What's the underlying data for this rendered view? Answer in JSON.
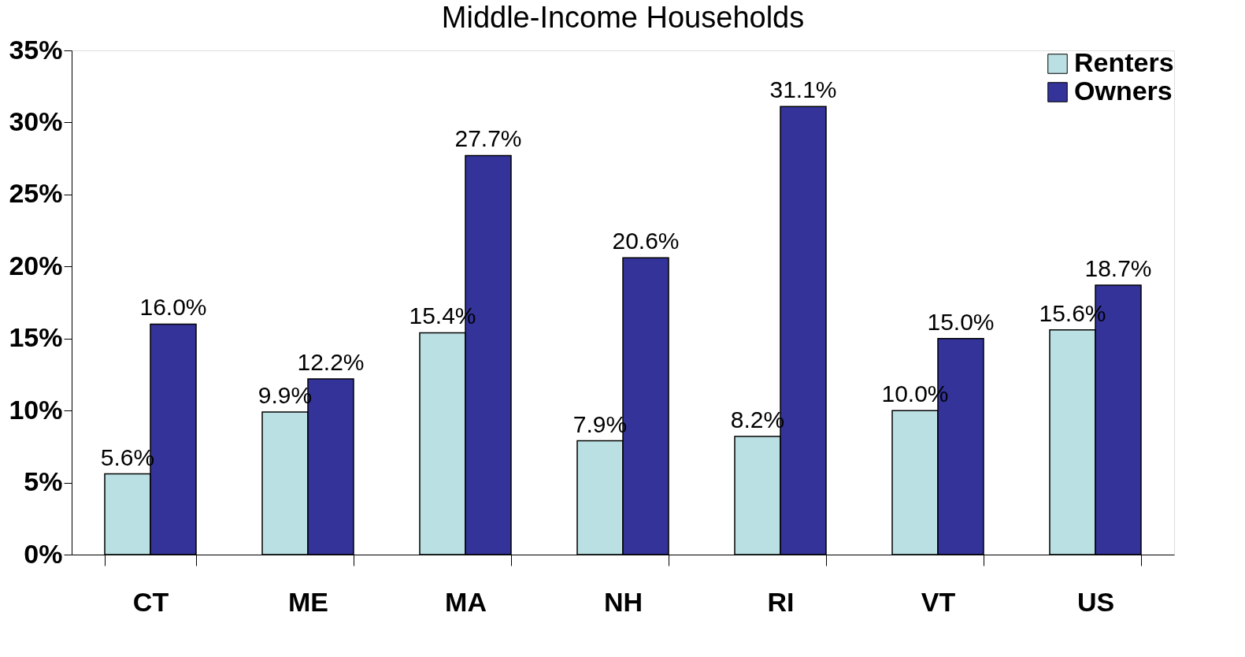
{
  "chart_data": {
    "type": "bar",
    "title": "Middle-Income Households",
    "categories": [
      "CT",
      "ME",
      "MA",
      "NH",
      "RI",
      "VT",
      "US"
    ],
    "series": [
      {
        "name": "Renters",
        "color": "#bbe0e3",
        "values": [
          5.6,
          9.9,
          15.4,
          7.9,
          8.2,
          10.0,
          15.6
        ],
        "value_labels": [
          "5.6%",
          "9.9%",
          "15.4%",
          "7.9%",
          "8.2%",
          "10.0%",
          "15.6%"
        ]
      },
      {
        "name": "Owners",
        "color": "#333399",
        "values": [
          16.0,
          12.2,
          27.7,
          20.6,
          31.1,
          15.0,
          18.7
        ],
        "value_labels": [
          "16.0%",
          "12.2%",
          "27.7%",
          "20.6%",
          "31.1%",
          "15.0%",
          "18.7%"
        ]
      }
    ],
    "ylim": [
      0,
      35
    ],
    "yticks": [
      {
        "value": 0,
        "label": "0%"
      },
      {
        "value": 5,
        "label": "5%"
      },
      {
        "value": 10,
        "label": "10%"
      },
      {
        "value": 15,
        "label": "15%"
      },
      {
        "value": 20,
        "label": "20%"
      },
      {
        "value": 25,
        "label": "25%"
      },
      {
        "value": 30,
        "label": "30%"
      },
      {
        "value": 35,
        "label": "35%"
      }
    ],
    "grid": false,
    "legend": "top right"
  }
}
